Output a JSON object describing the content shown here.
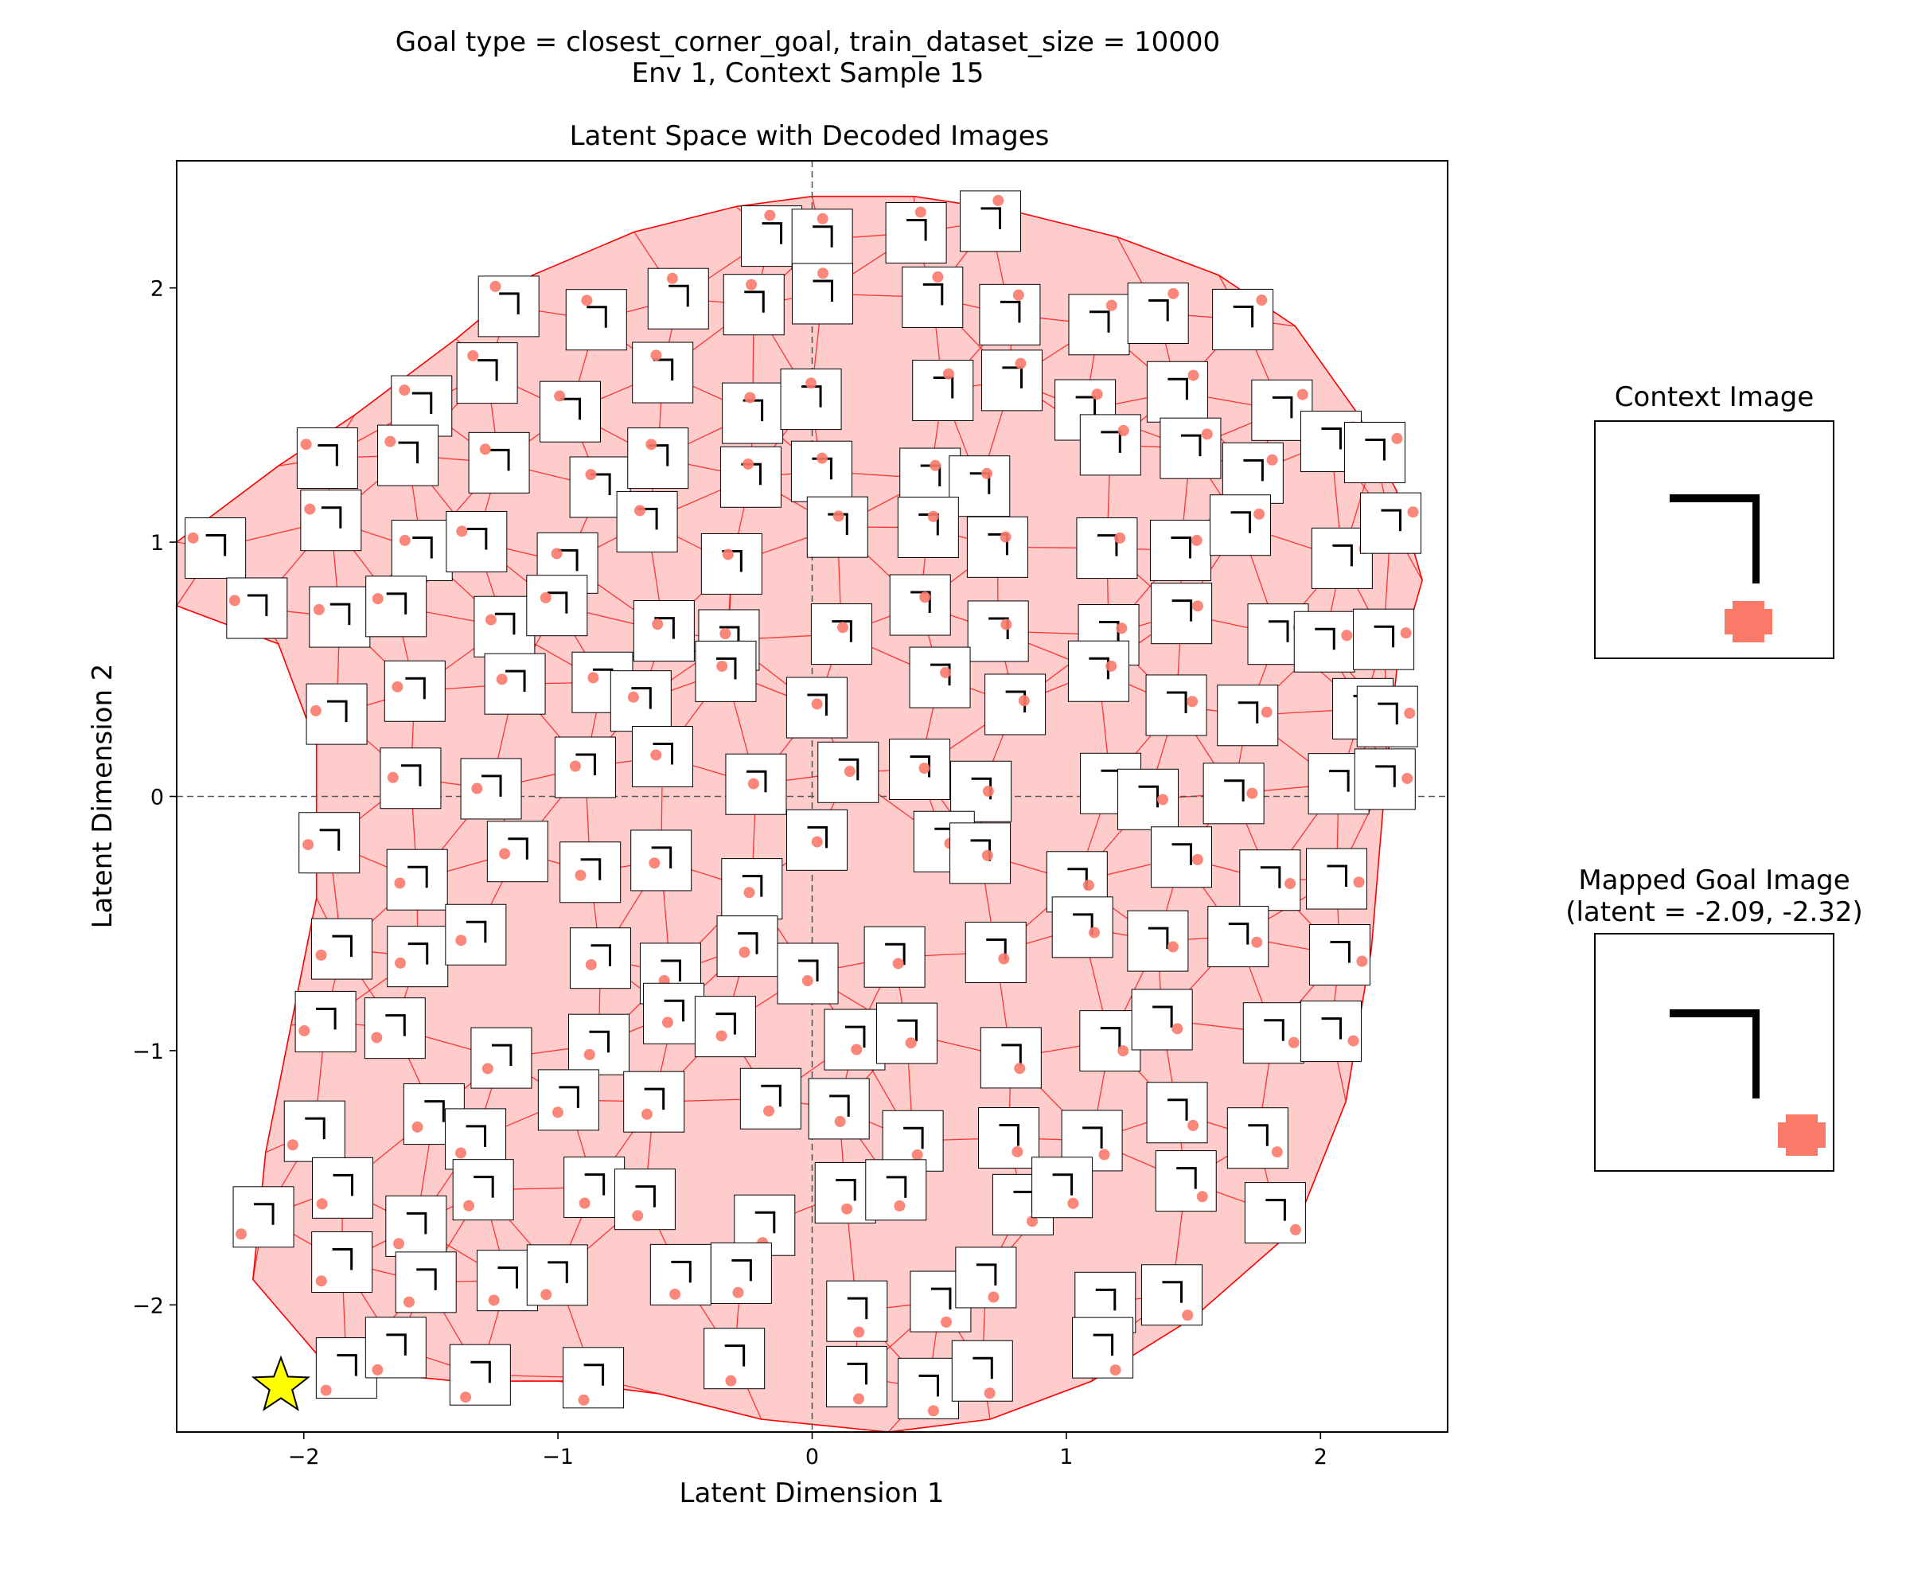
{
  "figure": {
    "suptitle_line1": "Goal type = closest_corner_goal, train_dataset_size = 10000",
    "suptitle_line2": "Env 1, Context Sample 15"
  },
  "chart_data": {
    "type": "scatter",
    "title": "Latent Space with Decoded Images",
    "xlabel": "Latent Dimension 1",
    "ylabel": "Latent Dimension 2",
    "xlim": [
      -2.5,
      2.5
    ],
    "ylim": [
      -2.5,
      2.5
    ],
    "xticks": [
      -2,
      -1,
      0,
      1,
      2
    ],
    "yticks": [
      -2,
      -1,
      0,
      1,
      2
    ],
    "xtick_labels": [
      "−2",
      "−1",
      "0",
      "1",
      "2"
    ],
    "ytick_labels": [
      "−2",
      "−1",
      "0",
      "1",
      "2"
    ],
    "reference_lines": {
      "x": 0,
      "y": 0
    },
    "mapped_goal_marker": {
      "x": -2.09,
      "y": -2.32,
      "shape": "star",
      "color": "#ffff00"
    },
    "hull_outline": [
      [
        -2.5,
        1.0
      ],
      [
        -2.1,
        1.3
      ],
      [
        -1.8,
        1.5
      ],
      [
        -1.4,
        1.8
      ],
      [
        -1.1,
        2.05
      ],
      [
        -0.7,
        2.22
      ],
      [
        -0.3,
        2.32
      ],
      [
        0.0,
        2.36
      ],
      [
        0.4,
        2.36
      ],
      [
        0.8,
        2.3
      ],
      [
        1.2,
        2.2
      ],
      [
        1.6,
        2.05
      ],
      [
        1.9,
        1.85
      ],
      [
        2.15,
        1.5
      ],
      [
        2.3,
        1.2
      ],
      [
        2.4,
        0.85
      ],
      [
        2.3,
        0.5
      ],
      [
        2.25,
        0.0
      ],
      [
        2.2,
        -0.6
      ],
      [
        2.1,
        -1.2
      ],
      [
        1.9,
        -1.7
      ],
      [
        1.5,
        -2.05
      ],
      [
        1.1,
        -2.3
      ],
      [
        0.7,
        -2.45
      ],
      [
        0.3,
        -2.5
      ],
      [
        -0.2,
        -2.45
      ],
      [
        -0.6,
        -2.35
      ],
      [
        -1.0,
        -2.3
      ],
      [
        -1.4,
        -2.3
      ],
      [
        -1.9,
        -2.25
      ],
      [
        -2.2,
        -1.9
      ],
      [
        -2.15,
        -1.4
      ],
      [
        -2.05,
        -0.9
      ],
      [
        -1.95,
        -0.4
      ],
      [
        -1.95,
        0.2
      ],
      [
        -2.1,
        0.6
      ],
      [
        -2.5,
        0.75
      ]
    ],
    "mesh_color": "#ff0000",
    "fill_color": "#ffcccc",
    "decoded_image_grid": {
      "x_values": [
        -2.25,
        -1.92,
        -1.58,
        -1.25,
        -0.92,
        -0.58,
        -0.25,
        0.08,
        0.42,
        0.75,
        1.08,
        1.42,
        1.75,
        2.08,
        2.3
      ],
      "y_values": [
        2.2,
        1.9,
        1.6,
        1.3,
        1.0,
        0.7,
        0.4,
        0.07,
        -0.27,
        -0.6,
        -0.93,
        -1.27,
        -1.6,
        -1.93,
        -2.25
      ]
    }
  },
  "side_panels": {
    "context_title": "Context Image",
    "goal_title_line1": "Mapped Goal Image",
    "goal_title_line2": "(latent = -2.09, -2.32)",
    "wall_color": "#000000",
    "ball_color": "#fa7a6a"
  }
}
